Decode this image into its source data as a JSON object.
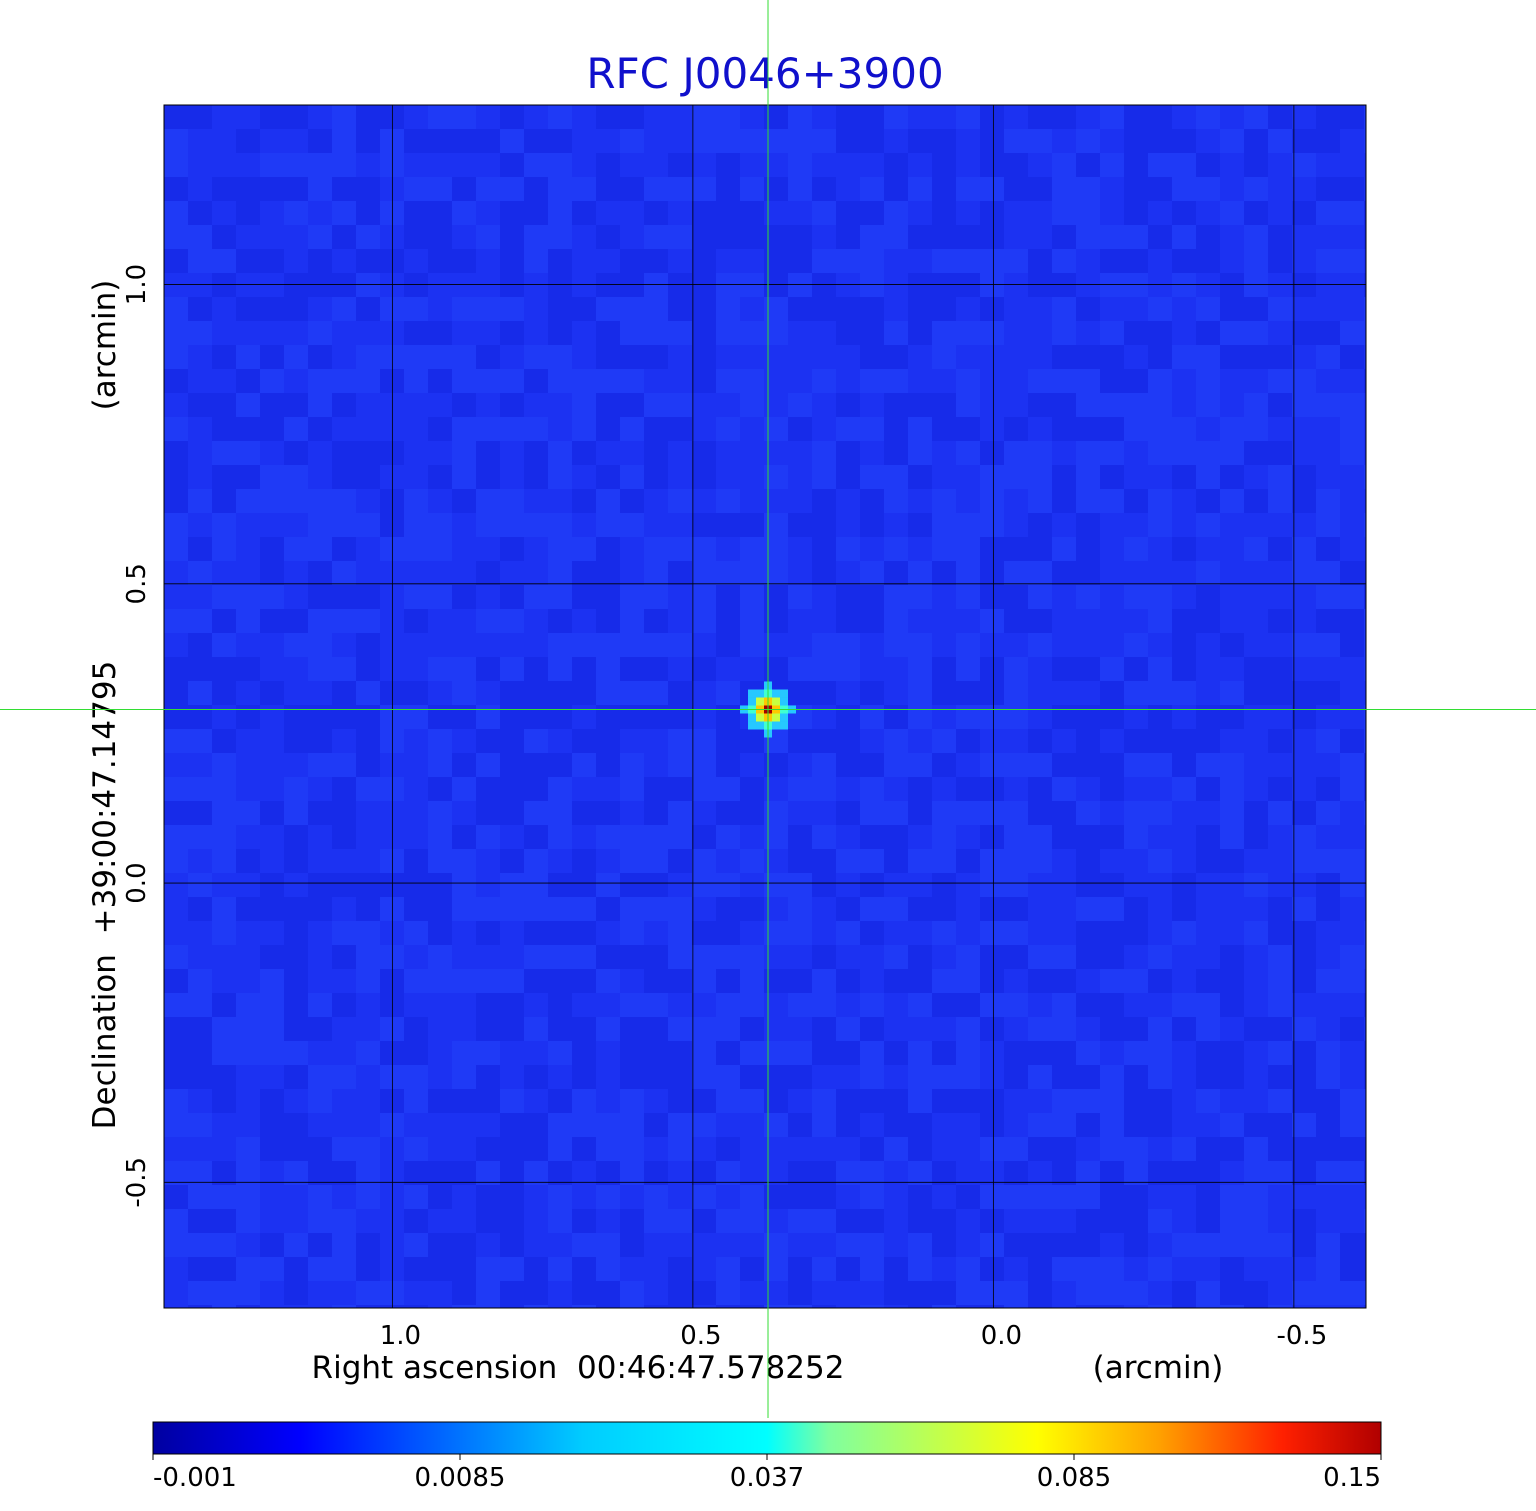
{
  "chart_data": {
    "type": "heatmap",
    "title": "RFC J0046+3900",
    "title_color": "#1010cc",
    "xlabel": "Right ascension  00:46:47.578252",
    "xunit": "(arcmin)",
    "ylabel": "Declination  +39:00:47.14795",
    "yunit": "(arcmin)",
    "xlim": [
      1.38,
      -0.62
    ],
    "ylim": [
      -0.71,
      1.3
    ],
    "xticks": [
      {
        "value": 1.0,
        "label": "1.0"
      },
      {
        "value": 0.5,
        "label": "0.5"
      },
      {
        "value": 0.0,
        "label": "0.0"
      },
      {
        "value": -0.5,
        "label": "-0.5"
      }
    ],
    "yticks": [
      {
        "value": 1.0,
        "label": "1.0"
      },
      {
        "value": 0.5,
        "label": "0.5"
      },
      {
        "value": 0.0,
        "label": "0.0"
      },
      {
        "value": -0.5,
        "label": "-0.5"
      }
    ],
    "grid": true,
    "crosshair": {
      "x": 0.375,
      "y": 0.29,
      "color": "#33dd33"
    },
    "source": {
      "x": 0.375,
      "y": 0.29,
      "peak": 0.15
    },
    "background_level": 0.0,
    "colormap": "jet",
    "colorbar": {
      "placement": "bottom",
      "tick_labels": [
        "-0.001",
        "0.0085",
        "0.037",
        "0.085",
        "0.15"
      ]
    }
  }
}
